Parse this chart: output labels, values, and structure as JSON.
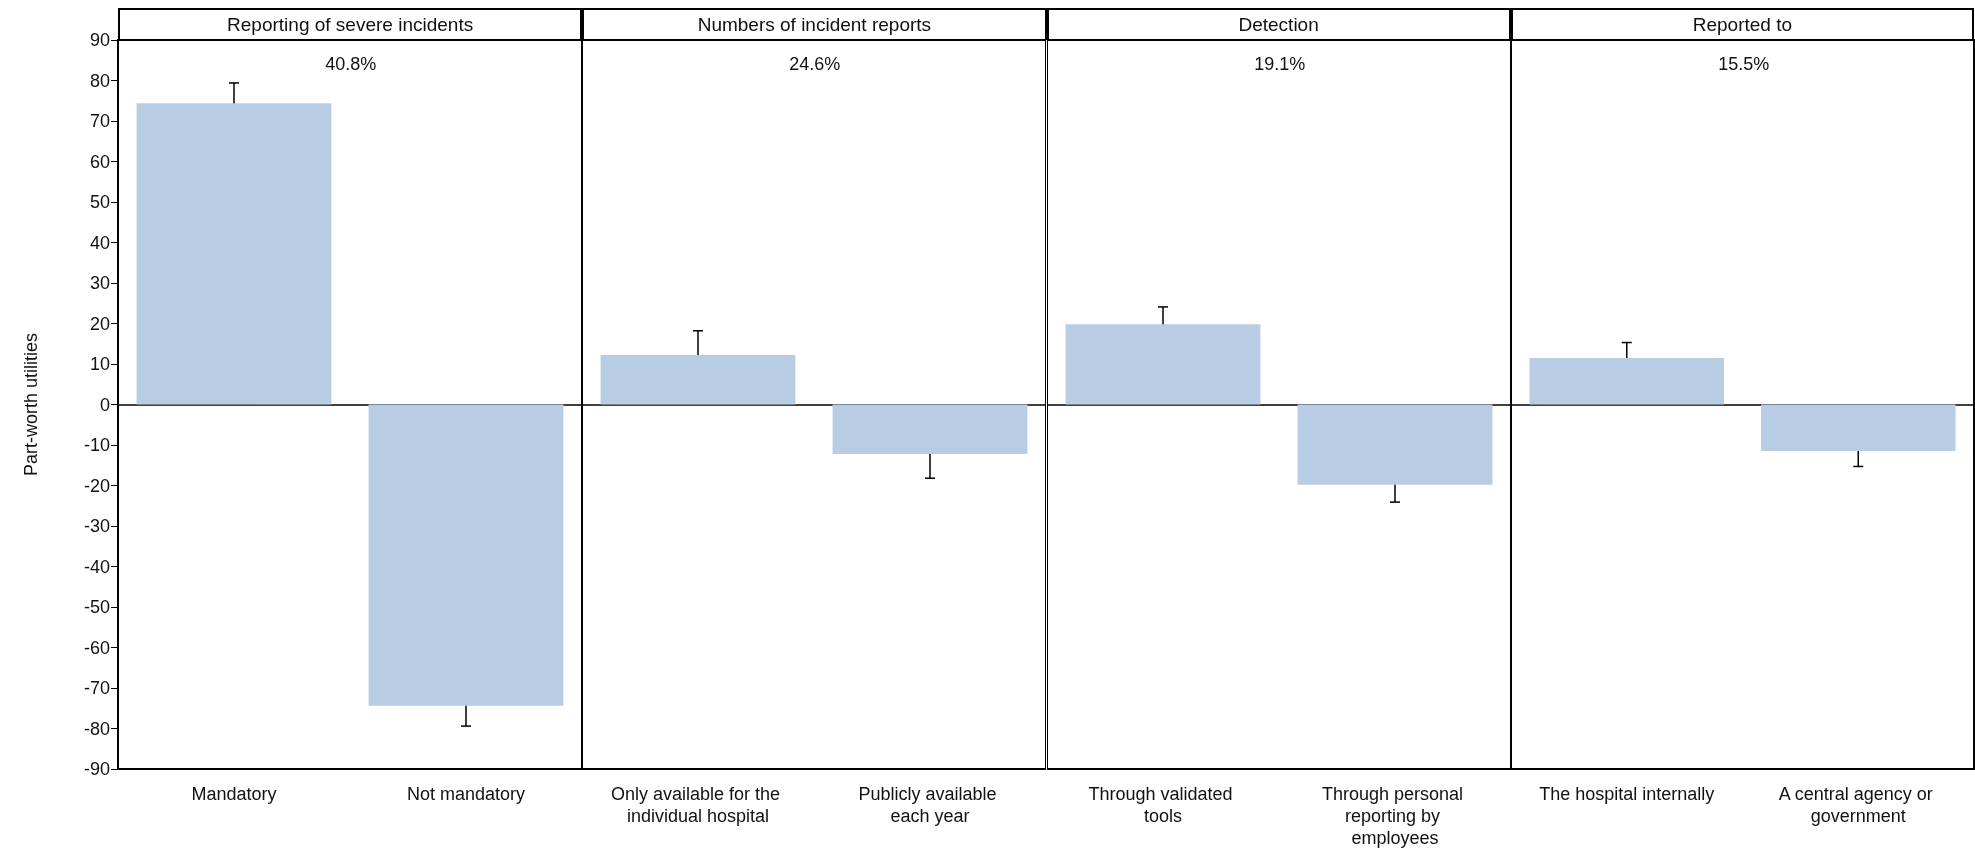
{
  "chart_data": [
    {
      "type": "bar",
      "title": "Reporting of severe incidents",
      "ylabel": "Part-worth utilities",
      "categories": [
        "Mandatory",
        "Not mandatory"
      ],
      "values": [
        74.4,
        -74.4
      ],
      "errors": [
        5,
        5
      ],
      "color": "#b8cce4",
      "ylim": [
        -90,
        90
      ],
      "yticks": [
        -90,
        -80,
        -70,
        -60,
        -50,
        -40,
        -30,
        -20,
        -10,
        0,
        10,
        20,
        30,
        40,
        50,
        60,
        70,
        80,
        90
      ],
      "annotations": [
        "40.8%"
      ]
    },
    {
      "type": "bar",
      "title": "Numbers of incident reports",
      "categories": [
        "Only available for the individual hospital",
        "Publicly available each year"
      ],
      "values": [
        12.2,
        -12.2
      ],
      "errors": [
        6,
        6
      ],
      "color": "#b8cce4",
      "ylim": [
        -90,
        90
      ],
      "yticks": [
        -90,
        -80,
        -70,
        -60,
        -50,
        -40,
        -30,
        -20,
        -10,
        0,
        10,
        20,
        30,
        40,
        50,
        60,
        70,
        80,
        90
      ],
      "tick_labels": "x",
      "annotations": [
        "24.6%"
      ]
    },
    {
      "type": "bar",
      "title": "Detection",
      "categories": [
        "Through validated tools",
        "Through personal reporting by employees"
      ],
      "values": [
        19.8,
        -19.8
      ],
      "errors": [
        4.3,
        4.3
      ],
      "color": "#b8cce4",
      "ylim": [
        -90,
        90
      ],
      "yticks": [
        -90,
        -80,
        -70,
        -60,
        -50,
        -40,
        -30,
        -20,
        -10,
        0,
        10,
        20,
        30,
        40,
        50,
        60,
        70,
        80,
        90
      ],
      "tick_labels": "x",
      "annotations": [
        "19.1%"
      ]
    },
    {
      "type": "bar",
      "title": "Reported to",
      "categories": [
        "The hospital internally",
        "A central agency or government"
      ],
      "values": [
        11.5,
        -11.5
      ],
      "errors": [
        3.8,
        3.8
      ],
      "color": "#b8cce4",
      "ylim": [
        -90,
        90
      ],
      "yticks": [
        -90,
        -80,
        -70,
        -60,
        -50,
        -40,
        -30,
        -20,
        -10,
        0,
        10,
        20,
        30,
        40,
        50,
        60,
        70,
        80,
        90
      ],
      "tick_labels": "x",
      "annotations": [
        "15.5%"
      ]
    }
  ]
}
